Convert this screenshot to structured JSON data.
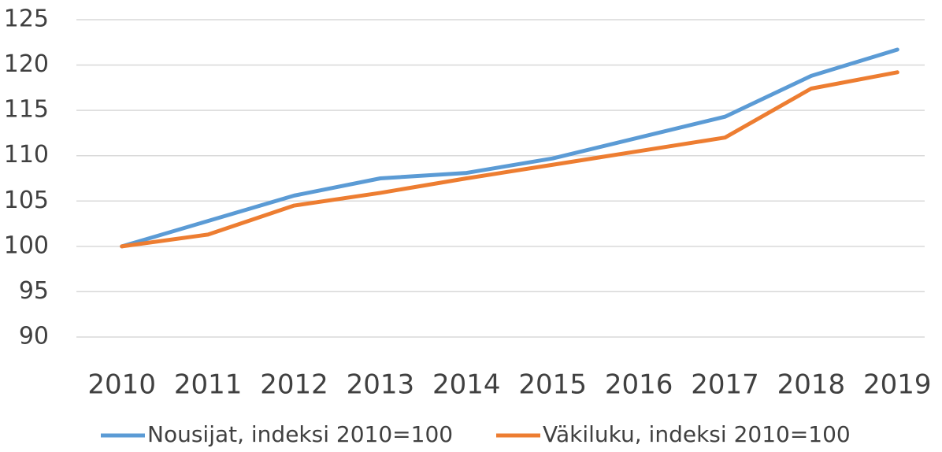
{
  "chart_data": {
    "type": "line",
    "categories": [
      "2010",
      "2011",
      "2012",
      "2013",
      "2014",
      "2015",
      "2016",
      "2017",
      "2018",
      "2019"
    ],
    "series": [
      {
        "name": "Nousijat, indeksi 2010=100",
        "color": "#5b9bd5",
        "values": [
          100,
          102.8,
          105.6,
          107.5,
          108.1,
          109.7,
          112.0,
          114.3,
          118.8,
          121.7
        ]
      },
      {
        "name": "Väkiluku, indeksi 2010=100",
        "color": "#ed7d31",
        "values": [
          100,
          101.3,
          104.5,
          105.9,
          107.5,
          109.0,
          110.5,
          112.0,
          117.4,
          119.2
        ]
      }
    ],
    "ylim": [
      90,
      125
    ],
    "yticks": [
      90,
      95,
      100,
      105,
      110,
      115,
      120,
      125
    ],
    "grid": true,
    "legend": "bottom"
  }
}
